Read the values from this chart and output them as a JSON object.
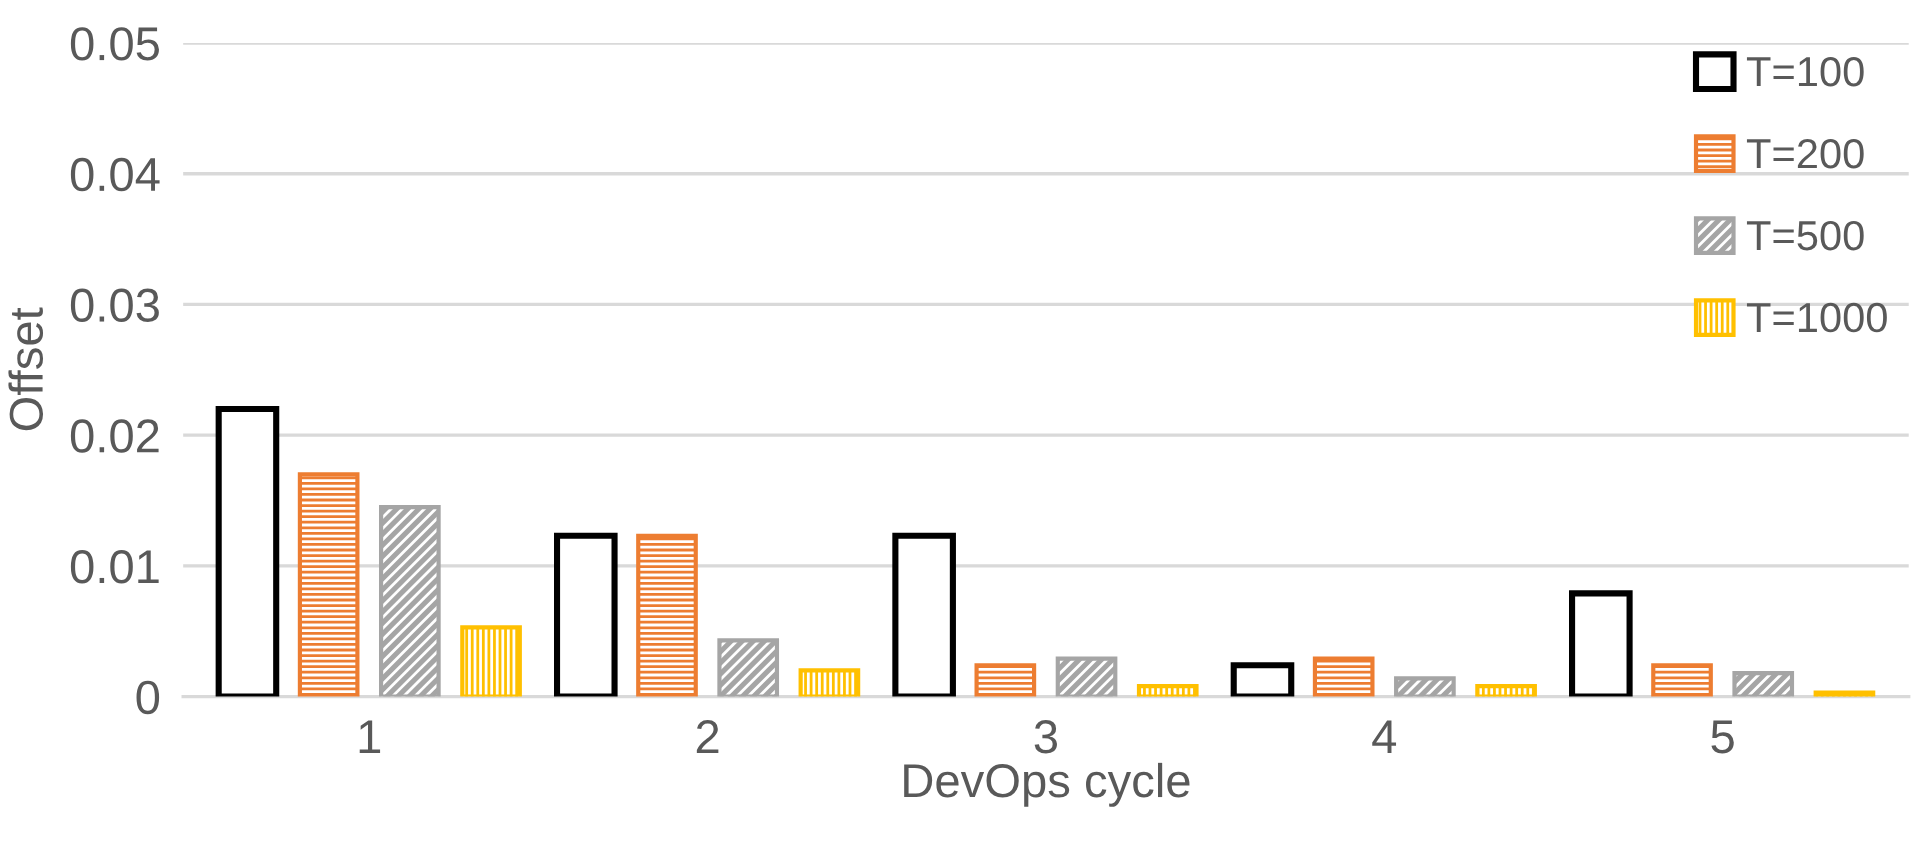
{
  "chart_data": {
    "type": "bar",
    "xlabel": "DevOps cycle",
    "ylabel": "Offset",
    "categories": [
      "1",
      "2",
      "3",
      "4",
      "5"
    ],
    "series": [
      {
        "name": "T=100",
        "color": "#000000",
        "values": [
          0.022,
          0.0123,
          0.0123,
          0.0024,
          0.0079
        ]
      },
      {
        "name": "T=200",
        "color": "#ed7d31",
        "values": [
          0.017,
          0.0123,
          0.0024,
          0.0029,
          0.0024
        ]
      },
      {
        "name": "T=500",
        "color": "#a5a5a5",
        "values": [
          0.0145,
          0.0043,
          0.0029,
          0.0014,
          0.0018
        ]
      },
      {
        "name": "T=1000",
        "color": "#ffc000",
        "values": [
          0.0053,
          0.002,
          0.0008,
          0.0008,
          0.0003
        ]
      }
    ],
    "ylim": [
      0,
      0.05
    ],
    "yticks": [
      {
        "value": 0,
        "label": "0"
      },
      0.01,
      0.02,
      0.03,
      0.04,
      0.05
    ],
    "grid": "y",
    "legend": "top right"
  }
}
